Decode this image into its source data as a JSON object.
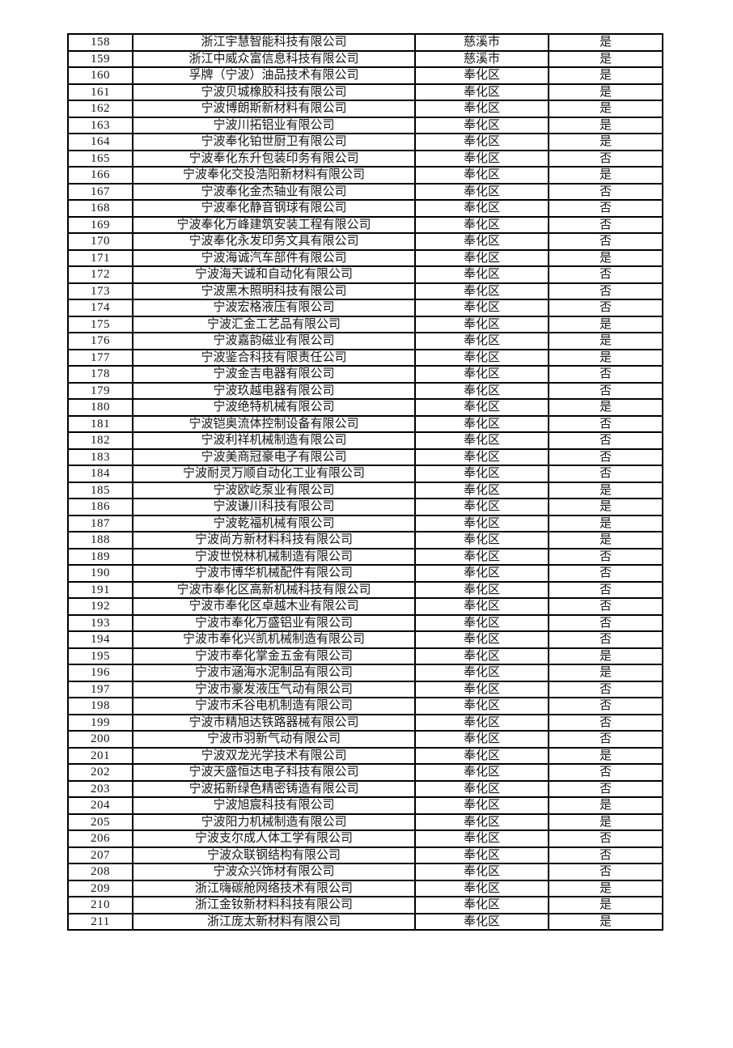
{
  "page": {
    "background": "#ffffff",
    "border_color": "#000000",
    "text_color": "#161616"
  },
  "table": {
    "rows": [
      {
        "no": "158",
        "name": "浙江宇慧智能科技有限公司",
        "district": "慈溪市",
        "flag": "是"
      },
      {
        "no": "159",
        "name": "浙江中威众富信息科技有限公司",
        "district": "慈溪市",
        "flag": "是"
      },
      {
        "no": "160",
        "name": "孚牌（宁波）油品技术有限公司",
        "district": "奉化区",
        "flag": "是"
      },
      {
        "no": "161",
        "name": "宁波贝城橡胶科技有限公司",
        "district": "奉化区",
        "flag": "是"
      },
      {
        "no": "162",
        "name": "宁波博朗斯新材料有限公司",
        "district": "奉化区",
        "flag": "是"
      },
      {
        "no": "163",
        "name": "宁波川拓铝业有限公司",
        "district": "奉化区",
        "flag": "是"
      },
      {
        "no": "164",
        "name": "宁波奉化铂世厨卫有限公司",
        "district": "奉化区",
        "flag": "是"
      },
      {
        "no": "165",
        "name": "宁波奉化东升包装印务有限公司",
        "district": "奉化区",
        "flag": "否"
      },
      {
        "no": "166",
        "name": "宁波奉化交投浩阳新材料有限公司",
        "district": "奉化区",
        "flag": "是"
      },
      {
        "no": "167",
        "name": "宁波奉化金杰轴业有限公司",
        "district": "奉化区",
        "flag": "否"
      },
      {
        "no": "168",
        "name": "宁波奉化静音钢球有限公司",
        "district": "奉化区",
        "flag": "否"
      },
      {
        "no": "169",
        "name": "宁波奉化万峰建筑安装工程有限公司",
        "district": "奉化区",
        "flag": "否"
      },
      {
        "no": "170",
        "name": "宁波奉化永发印务文具有限公司",
        "district": "奉化区",
        "flag": "否"
      },
      {
        "no": "171",
        "name": "宁波海诚汽车部件有限公司",
        "district": "奉化区",
        "flag": "是"
      },
      {
        "no": "172",
        "name": "宁波海天诚和自动化有限公司",
        "district": "奉化区",
        "flag": "否"
      },
      {
        "no": "173",
        "name": "宁波黑木照明科技有限公司",
        "district": "奉化区",
        "flag": "否"
      },
      {
        "no": "174",
        "name": "宁波宏格液压有限公司",
        "district": "奉化区",
        "flag": "否"
      },
      {
        "no": "175",
        "name": "宁波汇金工艺品有限公司",
        "district": "奉化区",
        "flag": "是"
      },
      {
        "no": "176",
        "name": "宁波嘉韵磁业有限公司",
        "district": "奉化区",
        "flag": "是"
      },
      {
        "no": "177",
        "name": "宁波鉴合科技有限责任公司",
        "district": "奉化区",
        "flag": "是"
      },
      {
        "no": "178",
        "name": "宁波金吉电器有限公司",
        "district": "奉化区",
        "flag": "否"
      },
      {
        "no": "179",
        "name": "宁波玖越电器有限公司",
        "district": "奉化区",
        "flag": "否"
      },
      {
        "no": "180",
        "name": "宁波绝特机械有限公司",
        "district": "奉化区",
        "flag": "是"
      },
      {
        "no": "181",
        "name": "宁波铠奥流体控制设备有限公司",
        "district": "奉化区",
        "flag": "否"
      },
      {
        "no": "182",
        "name": "宁波利祥机械制造有限公司",
        "district": "奉化区",
        "flag": "否"
      },
      {
        "no": "183",
        "name": "宁波美商冠豪电子有限公司",
        "district": "奉化区",
        "flag": "否"
      },
      {
        "no": "184",
        "name": "宁波耐灵万顺自动化工业有限公司",
        "district": "奉化区",
        "flag": "否"
      },
      {
        "no": "185",
        "name": "宁波欧屹泵业有限公司",
        "district": "奉化区",
        "flag": "是"
      },
      {
        "no": "186",
        "name": "宁波谦川科技有限公司",
        "district": "奉化区",
        "flag": "是"
      },
      {
        "no": "187",
        "name": "宁波乾福机械有限公司",
        "district": "奉化区",
        "flag": "是"
      },
      {
        "no": "188",
        "name": "宁波尚方新材料科技有限公司",
        "district": "奉化区",
        "flag": "是"
      },
      {
        "no": "189",
        "name": "宁波世悦林机械制造有限公司",
        "district": "奉化区",
        "flag": "否"
      },
      {
        "no": "190",
        "name": "宁波市博华机械配件有限公司",
        "district": "奉化区",
        "flag": "否"
      },
      {
        "no": "191",
        "name": "宁波市奉化区高新机械科技有限公司",
        "district": "奉化区",
        "flag": "否"
      },
      {
        "no": "192",
        "name": "宁波市奉化区卓越木业有限公司",
        "district": "奉化区",
        "flag": "否"
      },
      {
        "no": "193",
        "name": "宁波市奉化万盛铝业有限公司",
        "district": "奉化区",
        "flag": "否"
      },
      {
        "no": "194",
        "name": "宁波市奉化兴凯机械制造有限公司",
        "district": "奉化区",
        "flag": "否"
      },
      {
        "no": "195",
        "name": "宁波市奉化掌金五金有限公司",
        "district": "奉化区",
        "flag": "是"
      },
      {
        "no": "196",
        "name": "宁波市涵海水泥制品有限公司",
        "district": "奉化区",
        "flag": "是"
      },
      {
        "no": "197",
        "name": "宁波市豪发液压气动有限公司",
        "district": "奉化区",
        "flag": "否"
      },
      {
        "no": "198",
        "name": "宁波市禾谷电机制造有限公司",
        "district": "奉化区",
        "flag": "否"
      },
      {
        "no": "199",
        "name": "宁波市精旭达铁路器械有限公司",
        "district": "奉化区",
        "flag": "否"
      },
      {
        "no": "200",
        "name": "宁波市羽新气动有限公司",
        "district": "奉化区",
        "flag": "否"
      },
      {
        "no": "201",
        "name": "宁波双龙光学技术有限公司",
        "district": "奉化区",
        "flag": "是"
      },
      {
        "no": "202",
        "name": "宁波天盛恒达电子科技有限公司",
        "district": "奉化区",
        "flag": "否"
      },
      {
        "no": "203",
        "name": "宁波拓新绿色精密铸造有限公司",
        "district": "奉化区",
        "flag": "否"
      },
      {
        "no": "204",
        "name": "宁波旭宸科技有限公司",
        "district": "奉化区",
        "flag": "是"
      },
      {
        "no": "205",
        "name": "宁波阳力机械制造有限公司",
        "district": "奉化区",
        "flag": "是"
      },
      {
        "no": "206",
        "name": "宁波支尔成人体工学有限公司",
        "district": "奉化区",
        "flag": "否"
      },
      {
        "no": "207",
        "name": "宁波众联钢结构有限公司",
        "district": "奉化区",
        "flag": "否"
      },
      {
        "no": "208",
        "name": "宁波众兴饰材有限公司",
        "district": "奉化区",
        "flag": "否"
      },
      {
        "no": "209",
        "name": "浙江嗨碳舱网络技术有限公司",
        "district": "奉化区",
        "flag": "是"
      },
      {
        "no": "210",
        "name": "浙江金钕新材料科技有限公司",
        "district": "奉化区",
        "flag": "是"
      },
      {
        "no": "211",
        "name": "浙江庞太新材料有限公司",
        "district": "奉化区",
        "flag": "是"
      }
    ]
  }
}
